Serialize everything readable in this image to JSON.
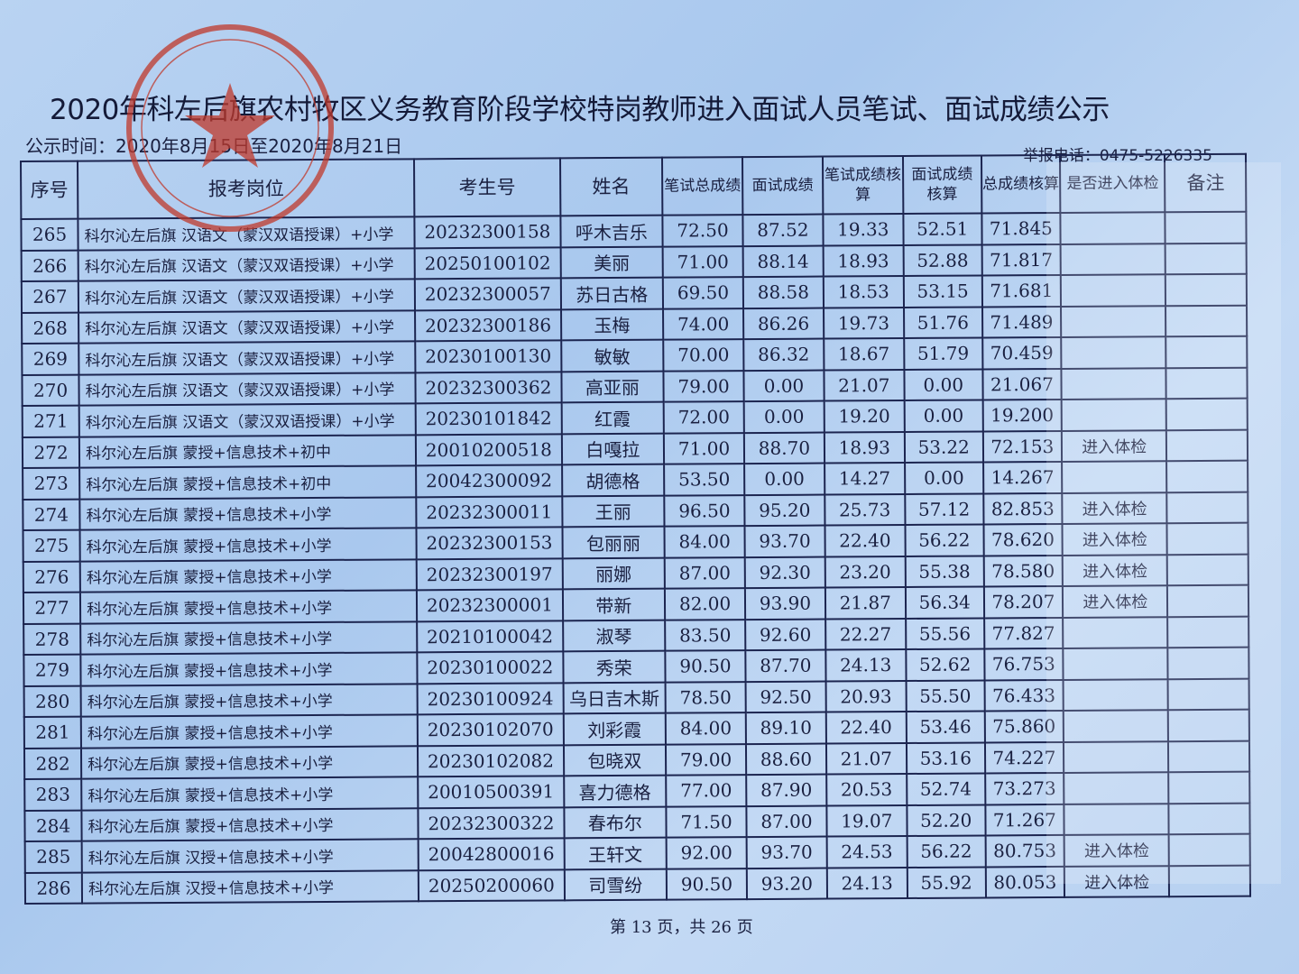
{
  "document": {
    "title": "2020年科左后旗农村牧区义务教育阶段学校特岗教师进入面试人员笔试、面试成绩公示",
    "publish_time": "公示时间：2020年8月15日至2020年8月21日",
    "report_phone": "举报电话：0475-5226335",
    "footer": "第 13 页，共 26 页",
    "stamp_color": "#c0392b"
  },
  "table": {
    "headers": [
      "序号",
      "报考岗位",
      "考生号",
      "姓名",
      "笔试总成绩",
      "面试成绩",
      "笔试成绩核算",
      "面试成绩核算",
      "总成绩核算",
      "是否进入体检",
      "备注"
    ],
    "rows": [
      {
        "no": "265",
        "position": "科尔沁左后旗 汉语文（蒙汉双语授课）+小学",
        "id": "20232300158",
        "name": "呼木吉乐",
        "written": "72.50",
        "interview": "87.52",
        "written_calc": "19.33",
        "interview_calc": "52.51",
        "total": "71.845",
        "exam": "",
        "note": ""
      },
      {
        "no": "266",
        "position": "科尔沁左后旗 汉语文（蒙汉双语授课）+小学",
        "id": "20250100102",
        "name": "美丽",
        "written": "71.00",
        "interview": "88.14",
        "written_calc": "18.93",
        "interview_calc": "52.88",
        "total": "71.817",
        "exam": "",
        "note": ""
      },
      {
        "no": "267",
        "position": "科尔沁左后旗 汉语文（蒙汉双语授课）+小学",
        "id": "20232300057",
        "name": "苏日古格",
        "written": "69.50",
        "interview": "88.58",
        "written_calc": "18.53",
        "interview_calc": "53.15",
        "total": "71.681",
        "exam": "",
        "note": ""
      },
      {
        "no": "268",
        "position": "科尔沁左后旗 汉语文（蒙汉双语授课）+小学",
        "id": "20232300186",
        "name": "玉梅",
        "written": "74.00",
        "interview": "86.26",
        "written_calc": "19.73",
        "interview_calc": "51.76",
        "total": "71.489",
        "exam": "",
        "note": ""
      },
      {
        "no": "269",
        "position": "科尔沁左后旗 汉语文（蒙汉双语授课）+小学",
        "id": "20230100130",
        "name": "敏敏",
        "written": "70.00",
        "interview": "86.32",
        "written_calc": "18.67",
        "interview_calc": "51.79",
        "total": "70.459",
        "exam": "",
        "note": ""
      },
      {
        "no": "270",
        "position": "科尔沁左后旗 汉语文（蒙汉双语授课）+小学",
        "id": "20232300362",
        "name": "高亚丽",
        "written": "79.00",
        "interview": "0.00",
        "written_calc": "21.07",
        "interview_calc": "0.00",
        "total": "21.067",
        "exam": "",
        "note": ""
      },
      {
        "no": "271",
        "position": "科尔沁左后旗 汉语文（蒙汉双语授课）+小学",
        "id": "20230101842",
        "name": "红霞",
        "written": "72.00",
        "interview": "0.00",
        "written_calc": "19.20",
        "interview_calc": "0.00",
        "total": "19.200",
        "exam": "",
        "note": ""
      },
      {
        "no": "272",
        "position": "科尔沁左后旗 蒙授+信息技术+初中",
        "id": "20010200518",
        "name": "白嘎拉",
        "written": "71.00",
        "interview": "88.70",
        "written_calc": "18.93",
        "interview_calc": "53.22",
        "total": "72.153",
        "exam": "进入体检",
        "note": ""
      },
      {
        "no": "273",
        "position": "科尔沁左后旗 蒙授+信息技术+初中",
        "id": "20042300092",
        "name": "胡德格",
        "written": "53.50",
        "interview": "0.00",
        "written_calc": "14.27",
        "interview_calc": "0.00",
        "total": "14.267",
        "exam": "",
        "note": ""
      },
      {
        "no": "274",
        "position": "科尔沁左后旗 蒙授+信息技术+小学",
        "id": "20232300011",
        "name": "王丽",
        "written": "96.50",
        "interview": "95.20",
        "written_calc": "25.73",
        "interview_calc": "57.12",
        "total": "82.853",
        "exam": "进入体检",
        "note": ""
      },
      {
        "no": "275",
        "position": "科尔沁左后旗 蒙授+信息技术+小学",
        "id": "20232300153",
        "name": "包丽丽",
        "written": "84.00",
        "interview": "93.70",
        "written_calc": "22.40",
        "interview_calc": "56.22",
        "total": "78.620",
        "exam": "进入体检",
        "note": ""
      },
      {
        "no": "276",
        "position": "科尔沁左后旗 蒙授+信息技术+小学",
        "id": "20232300197",
        "name": "丽娜",
        "written": "87.00",
        "interview": "92.30",
        "written_calc": "23.20",
        "interview_calc": "55.38",
        "total": "78.580",
        "exam": "进入体检",
        "note": ""
      },
      {
        "no": "277",
        "position": "科尔沁左后旗 蒙授+信息技术+小学",
        "id": "20232300001",
        "name": "带新",
        "written": "82.00",
        "interview": "93.90",
        "written_calc": "21.87",
        "interview_calc": "56.34",
        "total": "78.207",
        "exam": "进入体检",
        "note": ""
      },
      {
        "no": "278",
        "position": "科尔沁左后旗 蒙授+信息技术+小学",
        "id": "20210100042",
        "name": "淑琴",
        "written": "83.50",
        "interview": "92.60",
        "written_calc": "22.27",
        "interview_calc": "55.56",
        "total": "77.827",
        "exam": "",
        "note": ""
      },
      {
        "no": "279",
        "position": "科尔沁左后旗 蒙授+信息技术+小学",
        "id": "20230100022",
        "name": "秀荣",
        "written": "90.50",
        "interview": "87.70",
        "written_calc": "24.13",
        "interview_calc": "52.62",
        "total": "76.753",
        "exam": "",
        "note": ""
      },
      {
        "no": "280",
        "position": "科尔沁左后旗 蒙授+信息技术+小学",
        "id": "20230100924",
        "name": "乌日吉木斯",
        "written": "78.50",
        "interview": "92.50",
        "written_calc": "20.93",
        "interview_calc": "55.50",
        "total": "76.433",
        "exam": "",
        "note": ""
      },
      {
        "no": "281",
        "position": "科尔沁左后旗 蒙授+信息技术+小学",
        "id": "20230102070",
        "name": "刘彩霞",
        "written": "84.00",
        "interview": "89.10",
        "written_calc": "22.40",
        "interview_calc": "53.46",
        "total": "75.860",
        "exam": "",
        "note": ""
      },
      {
        "no": "282",
        "position": "科尔沁左后旗 蒙授+信息技术+小学",
        "id": "20230102082",
        "name": "包晓双",
        "written": "79.00",
        "interview": "88.60",
        "written_calc": "21.07",
        "interview_calc": "53.16",
        "total": "74.227",
        "exam": "",
        "note": ""
      },
      {
        "no": "283",
        "position": "科尔沁左后旗 蒙授+信息技术+小学",
        "id": "20010500391",
        "name": "喜力德格",
        "written": "77.00",
        "interview": "87.90",
        "written_calc": "20.53",
        "interview_calc": "52.74",
        "total": "73.273",
        "exam": "",
        "note": ""
      },
      {
        "no": "284",
        "position": "科尔沁左后旗 蒙授+信息技术+小学",
        "id": "20232300322",
        "name": "春布尔",
        "written": "71.50",
        "interview": "87.00",
        "written_calc": "19.07",
        "interview_calc": "52.20",
        "total": "71.267",
        "exam": "",
        "note": ""
      },
      {
        "no": "285",
        "position": "科尔沁左后旗 汉授+信息技术+小学",
        "id": "20042800016",
        "name": "王轩文",
        "written": "92.00",
        "interview": "93.70",
        "written_calc": "24.53",
        "interview_calc": "56.22",
        "total": "80.753",
        "exam": "进入体检",
        "note": ""
      },
      {
        "no": "286",
        "position": "科尔沁左后旗 汉授+信息技术+小学",
        "id": "20250200060",
        "name": "司雪纷",
        "written": "90.50",
        "interview": "93.20",
        "written_calc": "24.13",
        "interview_calc": "55.92",
        "total": "80.053",
        "exam": "进入体检",
        "note": ""
      }
    ]
  }
}
